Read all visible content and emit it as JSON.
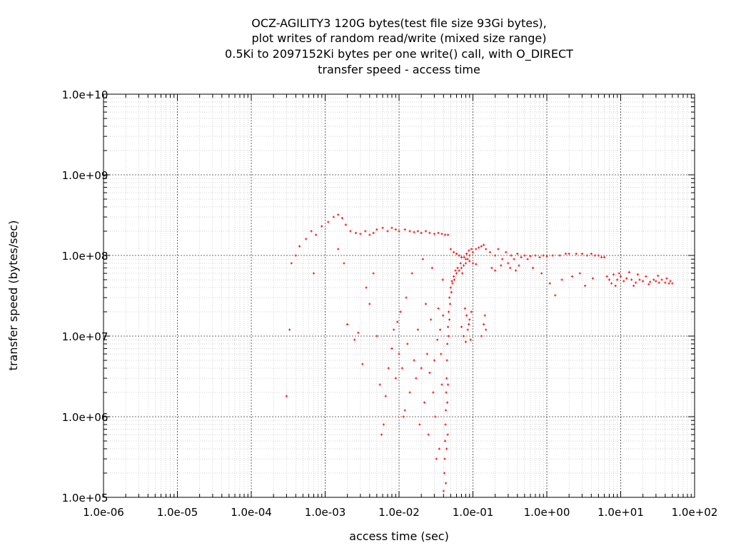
{
  "chart_data": {
    "type": "scatter",
    "title_lines": [
      "OCZ-AGILITY3 120G bytes(test file size 93Gi bytes),",
      "plot writes of random read/write (mixed size range)",
      "0.5Ki to 2097152Ki bytes per one write() call, with O_DIRECT",
      "transfer speed - access time"
    ],
    "xlabel": "access time (sec)",
    "ylabel": "transfer speed (bytes/sec)",
    "x_scale": "log",
    "y_scale": "log",
    "xlim": [
      1e-06,
      100
    ],
    "ylim": [
      100000.0,
      10000000000.0
    ],
    "x_tick_labels": [
      "1.0e-06",
      "1.0e-05",
      "1.0e-04",
      "1.0e-03",
      "1.0e-02",
      "1.0e-01",
      "1.0e+00",
      "1.0e+01",
      "1.0e+02"
    ],
    "y_tick_labels": [
      "1.0e+05",
      "1.0e+06",
      "1.0e+07",
      "1.0e+08",
      "1.0e+09",
      "1.0e+10"
    ],
    "grid": true,
    "marker_color": "#ff0000",
    "series": [
      {
        "points": [
          [
            0.0003,
            1800000.0
          ],
          [
            0.00033,
            12000000.0
          ],
          [
            0.00035,
            80000000.0
          ],
          [
            0.0004,
            100000000.0
          ],
          [
            0.00045,
            130000000.0
          ],
          [
            0.00055,
            160000000.0
          ],
          [
            0.00065,
            200000000.0
          ],
          [
            0.00075,
            180000000.0
          ],
          [
            0.0007,
            60000000.0
          ],
          [
            0.0009,
            230000000.0
          ],
          [
            0.0011,
            260000000.0
          ],
          [
            0.0013,
            300000000.0
          ],
          [
            0.0015,
            320000000.0
          ],
          [
            0.0017,
            290000000.0
          ],
          [
            0.0019,
            240000000.0
          ],
          [
            0.0022,
            200000000.0
          ],
          [
            0.0026,
            190000000.0
          ],
          [
            0.003,
            185000000.0
          ],
          [
            0.0035,
            200000000.0
          ],
          [
            0.004,
            180000000.0
          ],
          [
            0.0045,
            190000000.0
          ],
          [
            0.005,
            210000000.0
          ],
          [
            0.006,
            220000000.0
          ],
          [
            0.007,
            200000000.0
          ],
          [
            0.008,
            220000000.0
          ],
          [
            0.009,
            210000000.0
          ],
          [
            0.01,
            200000000.0
          ],
          [
            0.012,
            210000000.0
          ],
          [
            0.014,
            200000000.0
          ],
          [
            0.016,
            195000000.0
          ],
          [
            0.018,
            200000000.0
          ],
          [
            0.02,
            190000000.0
          ],
          [
            0.023,
            200000000.0
          ],
          [
            0.026,
            190000000.0
          ],
          [
            0.03,
            185000000.0
          ],
          [
            0.034,
            190000000.0
          ],
          [
            0.038,
            185000000.0
          ],
          [
            0.042,
            180000000.0
          ],
          [
            0.046,
            180000000.0
          ],
          [
            0.0015,
            120000000.0
          ],
          [
            0.0018,
            80000000.0
          ],
          [
            0.002,
            14000000.0
          ],
          [
            0.0025,
            9000000.0
          ],
          [
            0.0028,
            11000000.0
          ],
          [
            0.0032,
            4500000.0
          ],
          [
            0.0036,
            40000000.0
          ],
          [
            0.004,
            25000000.0
          ],
          [
            0.0045,
            60000000.0
          ],
          [
            0.005,
            10000000.0
          ],
          [
            0.0055,
            2500000.0
          ],
          [
            0.0058,
            600000.0
          ],
          [
            0.0062,
            800000.0
          ],
          [
            0.0066,
            1800000.0
          ],
          [
            0.0072,
            4000000.0
          ],
          [
            0.008,
            7000000.0
          ],
          [
            0.0085,
            12000000.0
          ],
          [
            0.009,
            3000000.0
          ],
          [
            0.0095,
            15000000.0
          ],
          [
            0.01,
            6000000.0
          ],
          [
            0.0105,
            20000000.0
          ],
          [
            0.011,
            4000000.0
          ],
          [
            0.0115,
            1000000.0
          ],
          [
            0.012,
            1200000.0
          ],
          [
            0.0125,
            30000000.0
          ],
          [
            0.013,
            8000000.0
          ],
          [
            0.014,
            2000000.0
          ],
          [
            0.015,
            60000000.0
          ],
          [
            0.016,
            5000000.0
          ],
          [
            0.017,
            3000000.0
          ],
          [
            0.018,
            12000000.0
          ],
          [
            0.019,
            800000.0
          ],
          [
            0.02,
            4000000.0
          ],
          [
            0.021,
            90000000.0
          ],
          [
            0.022,
            1500000.0
          ],
          [
            0.023,
            25000000.0
          ],
          [
            0.024,
            6000000.0
          ],
          [
            0.025,
            600000.0
          ],
          [
            0.026,
            3500000.0
          ],
          [
            0.027,
            16000000.0
          ],
          [
            0.028,
            70000000.0
          ],
          [
            0.029,
            2000000.0
          ],
          [
            0.03,
            5000000.0
          ],
          [
            0.031,
            1000000.0
          ],
          [
            0.032,
            300000.0
          ],
          [
            0.033,
            9000000.0
          ],
          [
            0.034,
            22000000.0
          ],
          [
            0.035,
            400000.0
          ],
          [
            0.036,
            12000000.0
          ],
          [
            0.037,
            6000000.0
          ],
          [
            0.038,
            2500000.0
          ],
          [
            0.039,
            50000000.0
          ],
          [
            0.0395,
            18000000.0
          ],
          [
            0.04,
            120000.0
          ],
          [
            0.041,
            200000.0
          ],
          [
            0.0415,
            300000.0
          ],
          [
            0.042,
            500000.0
          ],
          [
            0.0425,
            800000.0
          ],
          [
            0.043,
            1200000.0
          ],
          [
            0.0435,
            2000000.0
          ],
          [
            0.044,
            3000000.0
          ],
          [
            0.0445,
            5000000.0
          ],
          [
            0.045,
            8000000.0
          ],
          [
            0.046,
            13000000.0
          ],
          [
            0.047,
            20000000.0
          ],
          [
            0.048,
            30000000.0
          ],
          [
            0.05,
            40000000.0
          ],
          [
            0.052,
            48000000.0
          ],
          [
            0.055,
            55000000.0
          ],
          [
            0.06,
            60000000.0
          ],
          [
            0.065,
            65000000.0
          ],
          [
            0.07,
            70000000.0
          ],
          [
            0.075,
            75000000.0
          ],
          [
            0.08,
            80000000.0
          ],
          [
            0.085,
            90000000.0
          ],
          [
            0.09,
            100000000.0
          ],
          [
            0.1,
            110000000.0
          ],
          [
            0.11,
            120000000.0
          ],
          [
            0.12,
            125000000.0
          ],
          [
            0.13,
            130000000.0
          ],
          [
            0.14,
            135000000.0
          ],
          [
            0.042,
            90000.0
          ],
          [
            0.043,
            150000.0
          ],
          [
            0.044,
            400000.0
          ],
          [
            0.045,
            1500000.0
          ],
          [
            0.0455,
            600000.0
          ],
          [
            0.046,
            2500000.0
          ],
          [
            0.047,
            10000000.0
          ],
          [
            0.048,
            16000000.0
          ],
          [
            0.049,
            25000000.0
          ],
          [
            0.051,
            35000000.0
          ],
          [
            0.053,
            45000000.0
          ],
          [
            0.056,
            50000000.0
          ],
          [
            0.058,
            65000000.0
          ],
          [
            0.062,
            70000000.0
          ],
          [
            0.068,
            80000000.0
          ],
          [
            0.072,
            60000000.0
          ],
          [
            0.076,
            95000000.0
          ],
          [
            0.082,
            105000000.0
          ],
          [
            0.088,
            115000000.0
          ],
          [
            0.095,
            120000000.0
          ],
          [
            0.05,
            120000000.0
          ],
          [
            0.055,
            110000000.0
          ],
          [
            0.06,
            105000000.0
          ],
          [
            0.065,
            100000000.0
          ],
          [
            0.07,
            95000000.0
          ],
          [
            0.08,
            90000000.0
          ],
          [
            0.09,
            85000000.0
          ],
          [
            0.1,
            80000000.0
          ],
          [
            0.11,
            78000000.0
          ],
          [
            0.07,
            13000000.0
          ],
          [
            0.075,
            10000000.0
          ],
          [
            0.08,
            8500000.0
          ],
          [
            0.085,
            12000000.0
          ],
          [
            0.09,
            16000000.0
          ],
          [
            0.095,
            20000000.0
          ],
          [
            0.078,
            22000000.0
          ],
          [
            0.082,
            18000000.0
          ],
          [
            0.088,
            14000000.0
          ],
          [
            0.093,
            9000000.0
          ],
          [
            0.13,
            10000000.0
          ],
          [
            0.14,
            14000000.0
          ],
          [
            0.15,
            12000000.0
          ],
          [
            0.145,
            18000000.0
          ],
          [
            0.15,
            120000000.0
          ],
          [
            0.17,
            110000000.0
          ],
          [
            0.2,
            100000000.0
          ],
          [
            0.22,
            120000000.0
          ],
          [
            0.25,
            90000000.0
          ],
          [
            0.28,
            110000000.0
          ],
          [
            0.3,
            80000000.0
          ],
          [
            0.33,
            100000000.0
          ],
          [
            0.36,
            90000000.0
          ],
          [
            0.4,
            105000000.0
          ],
          [
            0.45,
            95000000.0
          ],
          [
            0.5,
            100000000.0
          ],
          [
            0.55,
            90000000.0
          ],
          [
            0.6,
            98000000.0
          ],
          [
            0.7,
            100000000.0
          ],
          [
            0.8,
            95000000.0
          ],
          [
            0.9,
            100000000.0
          ],
          [
            1.0,
            98000000.0
          ],
          [
            1.2,
            100000000.0
          ],
          [
            1.5,
            100000000.0
          ],
          [
            1.8,
            105000000.0
          ],
          [
            2.0,
            105000000.0
          ],
          [
            2.5,
            105000000.0
          ],
          [
            3.0,
            105000000.0
          ],
          [
            3.5,
            100000000.0
          ],
          [
            4.0,
            105000000.0
          ],
          [
            4.5,
            100000000.0
          ],
          [
            5.0,
            100000000.0
          ],
          [
            5.5,
            95000000.0
          ],
          [
            6.0,
            95000000.0
          ],
          [
            0.18,
            70000000.0
          ],
          [
            0.2,
            65000000.0
          ],
          [
            0.24,
            75000000.0
          ],
          [
            0.32,
            70000000.0
          ],
          [
            0.38,
            65000000.0
          ],
          [
            0.42,
            75000000.0
          ],
          [
            0.65,
            70000000.0
          ],
          [
            0.85,
            60000000.0
          ],
          [
            1.1,
            45000000.0
          ],
          [
            1.3,
            32000000.0
          ],
          [
            1.6,
            50000000.0
          ],
          [
            2.2,
            55000000.0
          ],
          [
            2.8,
            60000000.0
          ],
          [
            3.3,
            42000000.0
          ],
          [
            4.2,
            52000000.0
          ],
          [
            6.5,
            55000000.0
          ],
          [
            7.0,
            50000000.0
          ],
          [
            8.0,
            58000000.0
          ],
          [
            9.0,
            50000000.0
          ],
          [
            10.0,
            55000000.0
          ],
          [
            11.0,
            48000000.0
          ],
          [
            12.0,
            52000000.0
          ],
          [
            14.0,
            50000000.0
          ],
          [
            16.0,
            46000000.0
          ],
          [
            18.0,
            50000000.0
          ],
          [
            20.0,
            48000000.0
          ],
          [
            22.0,
            55000000.0
          ],
          [
            25.0,
            47000000.0
          ],
          [
            28.0,
            50000000.0
          ],
          [
            30.0,
            48000000.0
          ],
          [
            33.0,
            46000000.0
          ],
          [
            36.0,
            50000000.0
          ],
          [
            40.0,
            46000000.0
          ],
          [
            45.0,
            45000000.0
          ],
          [
            50.0,
            45000000.0
          ],
          [
            7.5,
            45000000.0
          ],
          [
            8.5,
            42000000.0
          ],
          [
            9.5,
            60000000.0
          ],
          [
            13.0,
            62000000.0
          ],
          [
            15.0,
            42000000.0
          ],
          [
            17.0,
            58000000.0
          ],
          [
            24.0,
            44000000.0
          ],
          [
            32.0,
            56000000.0
          ],
          [
            42.0,
            52000000.0
          ],
          [
            47.0,
            48000000.0
          ]
        ]
      }
    ]
  }
}
